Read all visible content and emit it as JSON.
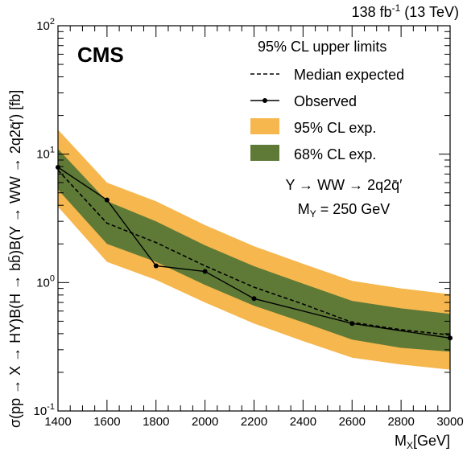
{
  "header": {
    "lumi": "138 fb",
    "lumi_exp": "-1",
    "energy": "(13 TeV)"
  },
  "experiment": "CMS",
  "legend": {
    "title": "95% CL upper limits",
    "entries": [
      {
        "key": "expected",
        "label": "Median expected"
      },
      {
        "key": "observed",
        "label": "Observed"
      },
      {
        "key": "band95",
        "label": "95% CL exp."
      },
      {
        "key": "band68",
        "label": "68% CL exp."
      }
    ]
  },
  "annotation": {
    "process": "Y → WW → 2q2q̄′",
    "mass_prefix": "M",
    "mass_sub": "Y",
    "mass_value": " = 250 GeV"
  },
  "colors": {
    "band95": "#F5B74E",
    "band68": "#5F7A37",
    "line": "#000000"
  },
  "chart_data": {
    "type": "line",
    "xlabel_main": "M",
    "xlabel_sub": "X",
    "xlabel_unit": "[GeV]",
    "ylabel": "σ(pp → X → HY)B(H → bb̄)B(Y → WW → 2q2q̄′) [fb]",
    "xlim": [
      1400,
      3000
    ],
    "ylim": [
      0.1,
      100
    ],
    "ylog": true,
    "x_ticks": [
      1400,
      1600,
      1800,
      2000,
      2200,
      2400,
      2600,
      2800,
      3000
    ],
    "y_ticks": [
      {
        "base": "10",
        "exp": "-1",
        "value": 0.1
      },
      {
        "base": "10",
        "exp": "0",
        "value": 1
      },
      {
        "base": "10",
        "exp": "1",
        "value": 10
      },
      {
        "base": "10",
        "exp": "2",
        "value": 100
      }
    ],
    "x": [
      1400,
      1600,
      1800,
      2000,
      2200,
      2400,
      2600,
      2800,
      3000
    ],
    "series": [
      {
        "name": "Observed",
        "key": "observed",
        "x": [
          1400,
          1600,
          1800,
          2000,
          2200,
          2600,
          3000
        ],
        "values": [
          7.9,
          4.4,
          1.35,
          1.22,
          0.75,
          0.48,
          0.37
        ]
      },
      {
        "name": "Median expected",
        "key": "expected",
        "values": [
          7.5,
          2.9,
          2.05,
          1.35,
          0.92,
          0.68,
          0.49,
          0.43,
          0.39
        ]
      },
      {
        "name": "68% CL exp.",
        "key": "band68",
        "low": [
          5.3,
          2.0,
          1.45,
          0.96,
          0.66,
          0.49,
          0.36,
          0.31,
          0.29
        ],
        "high": [
          11.0,
          4.3,
          3.0,
          1.95,
          1.34,
          0.98,
          0.72,
          0.63,
          0.57
        ]
      },
      {
        "name": "95% CL exp.",
        "key": "band95",
        "low": [
          3.9,
          1.45,
          1.05,
          0.7,
          0.48,
          0.35,
          0.26,
          0.23,
          0.21
        ],
        "high": [
          15.5,
          6.0,
          4.3,
          2.8,
          1.92,
          1.4,
          1.03,
          0.9,
          0.81
        ]
      }
    ]
  }
}
